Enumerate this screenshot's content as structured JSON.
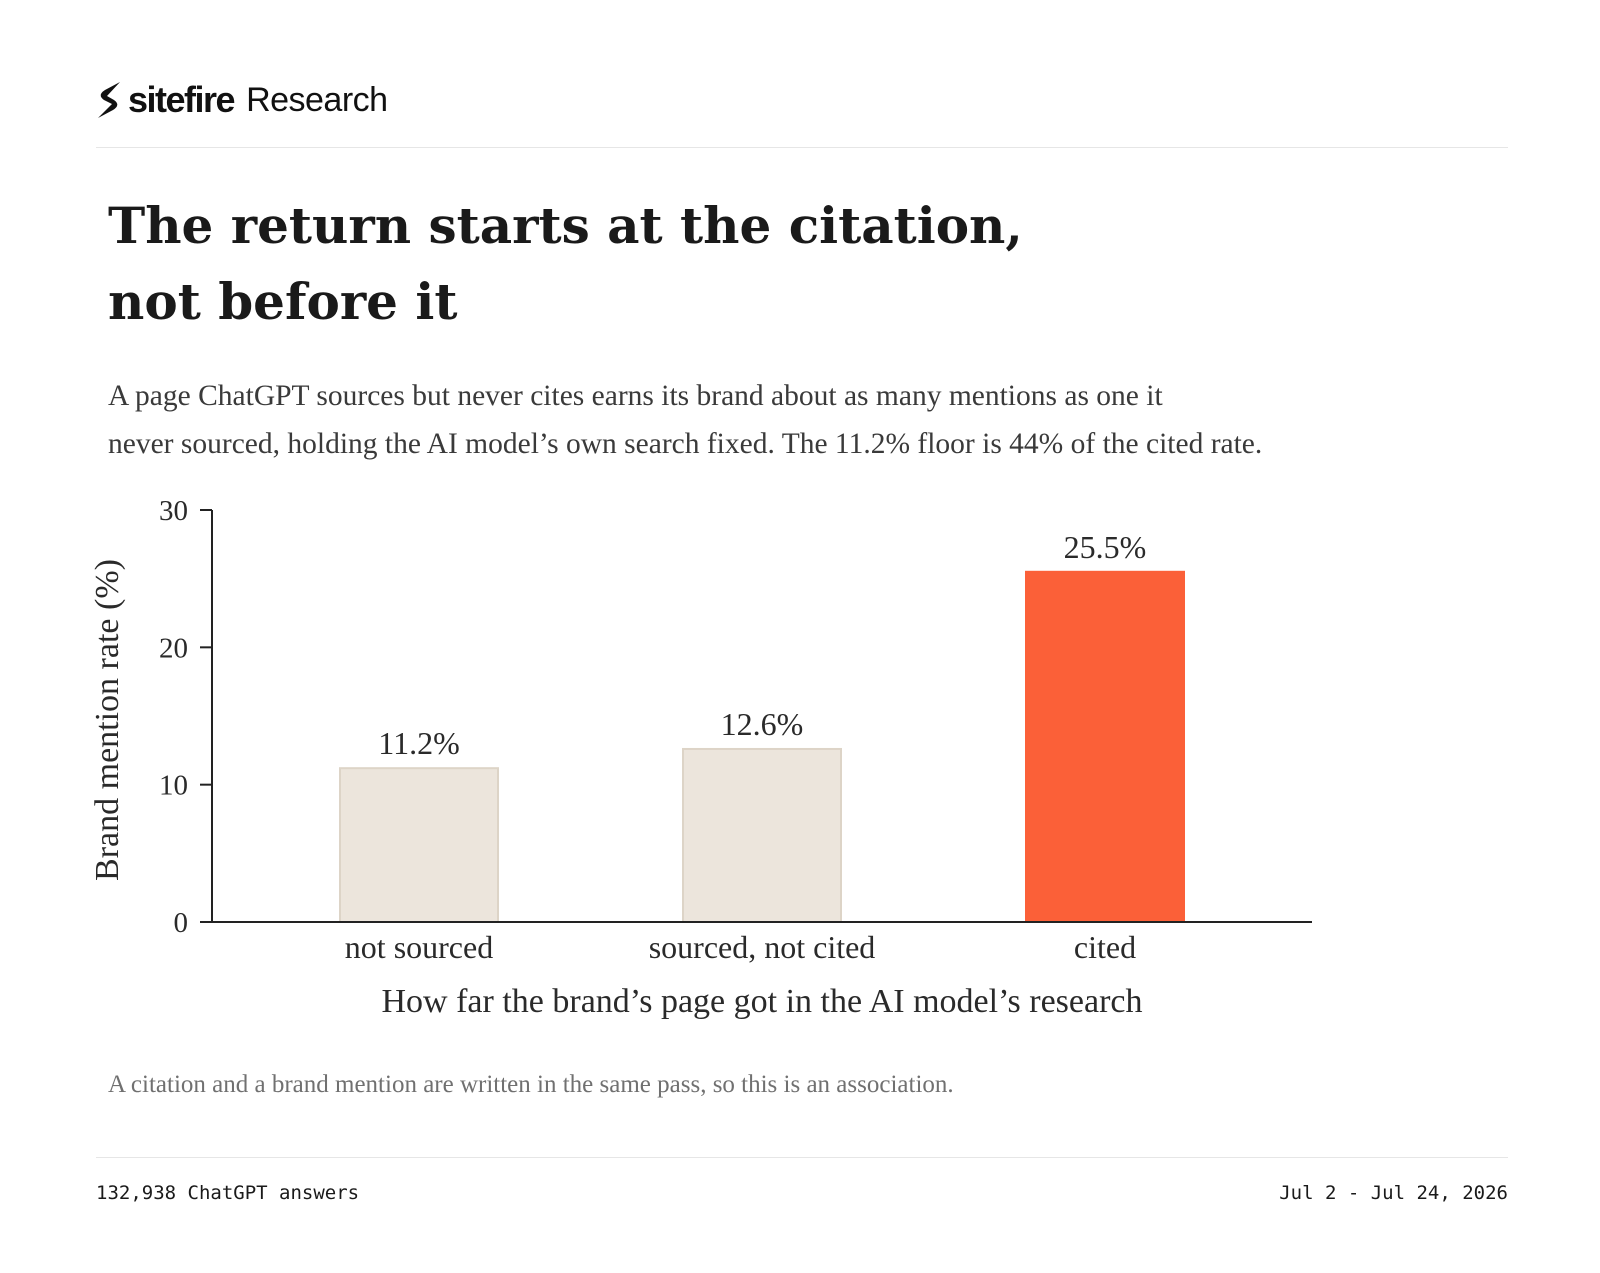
{
  "brand": {
    "name": "sitefire",
    "section": "Research"
  },
  "title_lines": [
    "The return starts at the citation,",
    "not before it"
  ],
  "subtitle_lines": [
    "A page ChatGPT sources but never cites earns its brand about as many mentions as one it",
    "never sourced, holding the AI model’s own search fixed. The 11.2% floor is 44% of the cited rate."
  ],
  "chart_data": {
    "type": "bar",
    "categories": [
      "not sourced",
      "sourced, not cited",
      "cited"
    ],
    "values": [
      11.2,
      12.6,
      25.5
    ],
    "value_labels": [
      "11.2%",
      "12.6%",
      "25.5%"
    ],
    "colors": [
      "#ece5dc",
      "#ece5dc",
      "#fb6038"
    ],
    "highlight_color": "#fb6038",
    "base_color": "#ece5dc",
    "xlabel": "How far the brand’s page got in the AI model’s research",
    "ylabel": "Brand mention rate (%)",
    "ylim": [
      0,
      30
    ],
    "yticks": [
      0,
      10,
      20,
      30
    ],
    "grid": false,
    "legend": "none"
  },
  "footnote": "A citation and a brand mention are written in the same pass, so this is an association.",
  "footer": {
    "sample": "132,938 ChatGPT answers",
    "date_range": "Jul 2 - Jul 24, 2026"
  }
}
